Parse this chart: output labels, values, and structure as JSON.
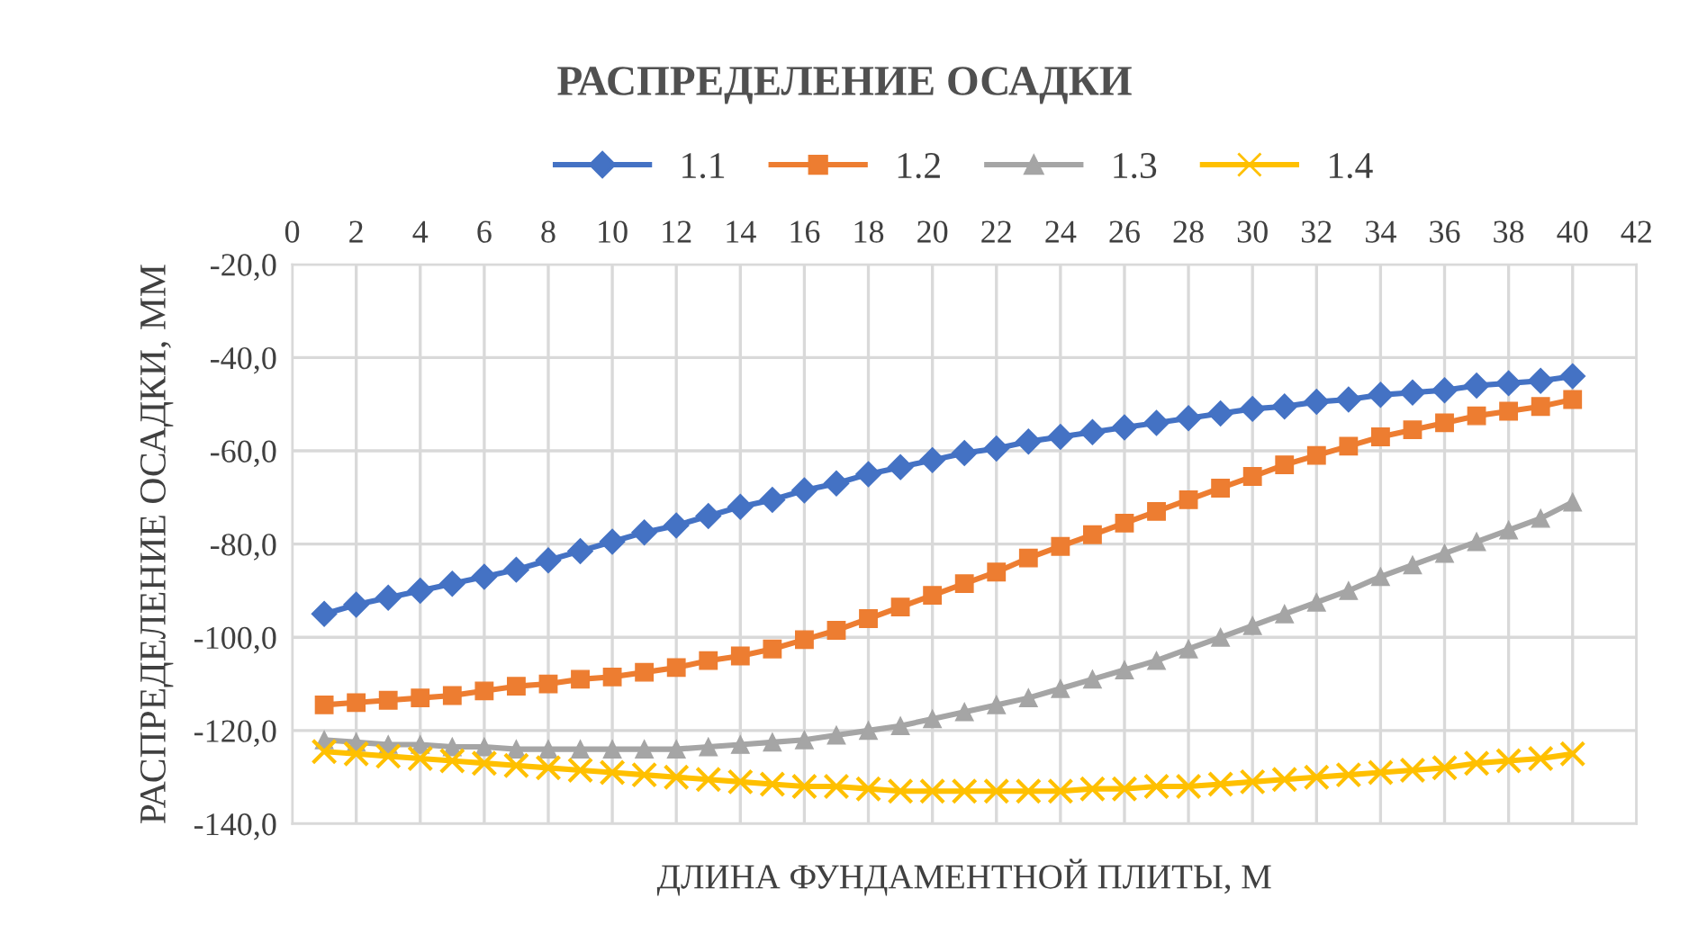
{
  "chart_data": {
    "type": "line",
    "title": "РАСПРЕДЕЛЕНИЕ ОСАДКИ",
    "xlabel": "ДЛИНА ФУНДАМЕНТНОЙ ПЛИТЫ, М",
    "ylabel": "РАСПРЕДЕЛЕНИЕ ОСАДКИ, ММ",
    "x": [
      1,
      2,
      3,
      4,
      5,
      6,
      7,
      8,
      9,
      10,
      11,
      12,
      13,
      14,
      15,
      16,
      17,
      18,
      19,
      20,
      21,
      22,
      23,
      24,
      25,
      26,
      27,
      28,
      29,
      30,
      31,
      32,
      33,
      34,
      35,
      36,
      37,
      38,
      39,
      40
    ],
    "series": [
      {
        "name": "1.1",
        "color": "#4472c4",
        "marker": "diamond",
        "values": [
          -95,
          -93,
          -91.5,
          -90,
          -88.5,
          -87,
          -85.5,
          -83.5,
          -81.5,
          -79.5,
          -77.5,
          -76,
          -74,
          -72,
          -70.5,
          -68.5,
          -67,
          -65,
          -63.5,
          -62,
          -60.5,
          -59.5,
          -58,
          -57,
          -56,
          -55,
          -54,
          -53,
          -52,
          -51,
          -50.5,
          -49.5,
          -49,
          -48,
          -47.5,
          -47,
          -46,
          -45.5,
          -45,
          -44
        ]
      },
      {
        "name": "1.2",
        "color": "#ed7d31",
        "marker": "square",
        "values": [
          -114.5,
          -114,
          -113.5,
          -113,
          -112.5,
          -111.5,
          -110.5,
          -110,
          -109,
          -108.5,
          -107.5,
          -106.5,
          -105,
          -104,
          -102.5,
          -100.5,
          -98.5,
          -96,
          -93.5,
          -91,
          -88.5,
          -86,
          -83,
          -80.5,
          -78,
          -75.5,
          -73,
          -70.5,
          -68,
          -65.5,
          -63,
          -61,
          -59,
          -57,
          -55.5,
          -54,
          -52.5,
          -51.5,
          -50.5,
          -49
        ]
      },
      {
        "name": "1.3",
        "color": "#a5a5a5",
        "marker": "triangle",
        "values": [
          -122,
          -122.5,
          -123,
          -123,
          -123.5,
          -123.5,
          -124,
          -124,
          -124,
          -124,
          -124,
          -124,
          -123.5,
          -123,
          -122.5,
          -122,
          -121,
          -120,
          -119,
          -117.5,
          -116,
          -114.5,
          -113,
          -111,
          -109,
          -107,
          -105,
          -102.5,
          -100,
          -97.5,
          -95,
          -92.5,
          -90,
          -87,
          -84.5,
          -82,
          -79.5,
          -77,
          -74.5,
          -71
        ]
      },
      {
        "name": "1.4",
        "color": "#ffc000",
        "marker": "cross",
        "values": [
          -124.5,
          -125,
          -125.5,
          -126,
          -126.5,
          -127,
          -127.5,
          -128,
          -128.5,
          -129,
          -129.5,
          -130,
          -130.5,
          -131,
          -131.5,
          -132,
          -132,
          -132.5,
          -133,
          -133,
          -133,
          -133,
          -133,
          -133,
          -132.5,
          -132.5,
          -132,
          -132,
          -131.5,
          -131,
          -130.5,
          -130,
          -129.5,
          -129,
          -128.5,
          -128,
          -127,
          -126.5,
          -126,
          -125
        ]
      }
    ],
    "xlim": [
      0,
      42
    ],
    "xticks": [
      0,
      2,
      4,
      6,
      8,
      10,
      12,
      14,
      16,
      18,
      20,
      22,
      24,
      26,
      28,
      30,
      32,
      34,
      36,
      38,
      40,
      42
    ],
    "ylim": [
      -140,
      -20
    ],
    "yticks": [
      {
        "value": -140,
        "label": "-140,0"
      },
      {
        "value": -120,
        "label": "-120,0"
      },
      {
        "value": -100,
        "label": "-100,0"
      },
      {
        "value": -80,
        "label": "-80,0"
      },
      {
        "value": -60,
        "label": "-60,0"
      },
      {
        "value": -40,
        "label": "-40,0"
      },
      {
        "value": -20,
        "label": "-20,0"
      }
    ],
    "grid": true,
    "legend": "top",
    "line_style": "solid"
  }
}
